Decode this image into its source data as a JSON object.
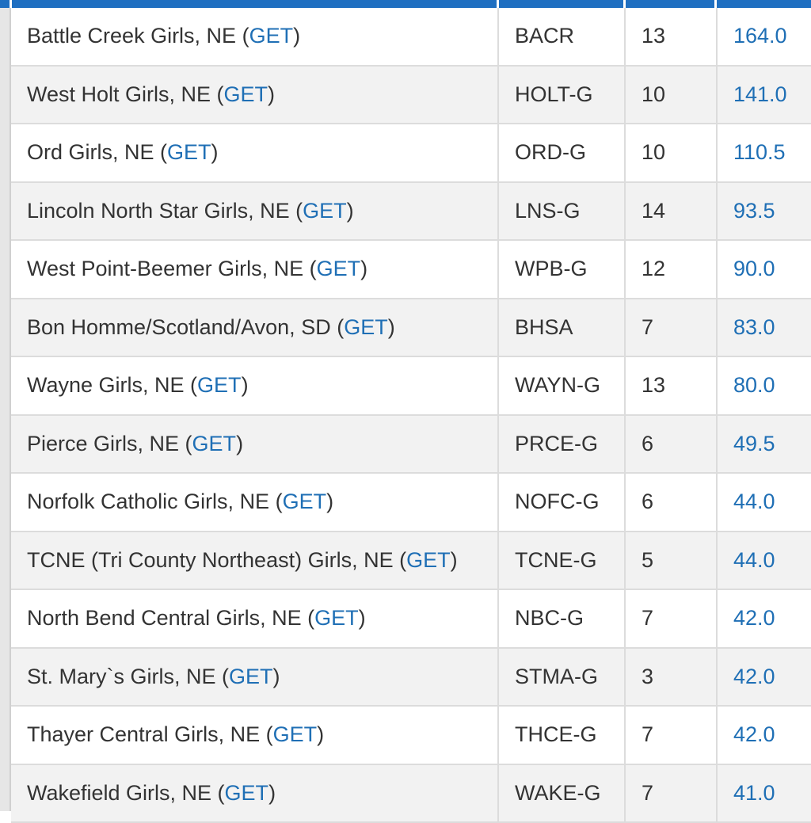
{
  "colors": {
    "header": "#1f6fc1",
    "link": "#1f6fb5",
    "text": "#333333"
  },
  "get_label": "GET",
  "rows": [
    {
      "team": "Battle Creek Girls, NE",
      "code": "BACR",
      "count": "13",
      "points": "164.0"
    },
    {
      "team": "West Holt Girls, NE",
      "code": "HOLT-G",
      "count": "10",
      "points": "141.0"
    },
    {
      "team": "Ord Girls, NE",
      "code": "ORD-G",
      "count": "10",
      "points": "110.5"
    },
    {
      "team": "Lincoln North Star Girls, NE",
      "code": "LNS-G",
      "count": "14",
      "points": "93.5"
    },
    {
      "team": "West Point-Beemer Girls, NE",
      "code": "WPB-G",
      "count": "12",
      "points": "90.0"
    },
    {
      "team": "Bon Homme/Scotland/Avon, SD",
      "code": "BHSA",
      "count": "7",
      "points": "83.0"
    },
    {
      "team": "Wayne Girls, NE",
      "code": "WAYN-G",
      "count": "13",
      "points": "80.0"
    },
    {
      "team": "Pierce Girls, NE",
      "code": "PRCE-G",
      "count": "6",
      "points": "49.5"
    },
    {
      "team": "Norfolk Catholic Girls, NE",
      "code": "NOFC-G",
      "count": "6",
      "points": "44.0"
    },
    {
      "team": "TCNE (Tri County Northeast) Girls, NE",
      "code": "TCNE-G",
      "count": "5",
      "points": "44.0"
    },
    {
      "team": "North Bend Central Girls, NE",
      "code": "NBC-G",
      "count": "7",
      "points": "42.0"
    },
    {
      "team": "St. Mary`s Girls, NE",
      "code": "STMA-G",
      "count": "3",
      "points": "42.0"
    },
    {
      "team": "Thayer Central Girls, NE",
      "code": "THCE-G",
      "count": "7",
      "points": "42.0"
    },
    {
      "team": "Wakefield Girls, NE",
      "code": "WAKE-G",
      "count": "7",
      "points": "41.0"
    }
  ]
}
